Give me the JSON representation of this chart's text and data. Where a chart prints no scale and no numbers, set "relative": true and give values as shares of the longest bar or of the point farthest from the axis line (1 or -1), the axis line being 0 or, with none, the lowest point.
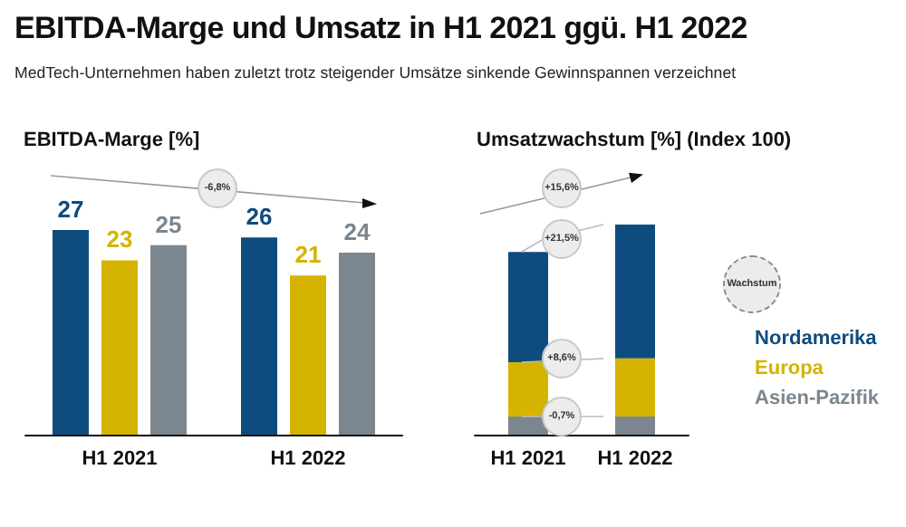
{
  "chart_data": [
    {
      "type": "bar",
      "title": "EBITDA-Marge und Umsatz in H1 2021 ggü. H1 2022",
      "subtitle": "MedTech-Unternehmen haben zuletzt trotz steigender Umsätze sinkende Gewinnspannen verzeichnet",
      "ylabel": "EBITDA-Marge [%]",
      "categories": [
        "H1 2021",
        "H1 2022"
      ],
      "series": [
        {
          "color": "#0e4c7f",
          "values": [
            27,
            26
          ]
        },
        {
          "color": "#d4b400",
          "values": [
            23,
            21
          ]
        },
        {
          "color": "#7c868e",
          "values": [
            25,
            24
          ]
        }
      ],
      "data_labels": true,
      "annotations": [
        "-6,8%"
      ]
    },
    {
      "type": "bar",
      "title": "Umsatzwachstum [%] (Index 100)",
      "categories": [
        "H1 2021",
        "H1 2022"
      ],
      "stacked": true,
      "relative": true,
      "series": [
        {
          "name": "Asien-Pazifik",
          "color": "#7c868e",
          "values": [
            0.086,
            0.086
          ]
        },
        {
          "name": "Europa",
          "color": "#d4b400",
          "values": [
            0.259,
            0.277
          ]
        },
        {
          "name": "Nordamerika",
          "color": "#0e4c7f",
          "values": [
            0.525,
            0.637
          ]
        }
      ],
      "legend": "right",
      "annotations": [
        "+15,6%",
        "+21,5%",
        "+8,6%",
        "-0,7%",
        "Wachstum"
      ]
    }
  ]
}
